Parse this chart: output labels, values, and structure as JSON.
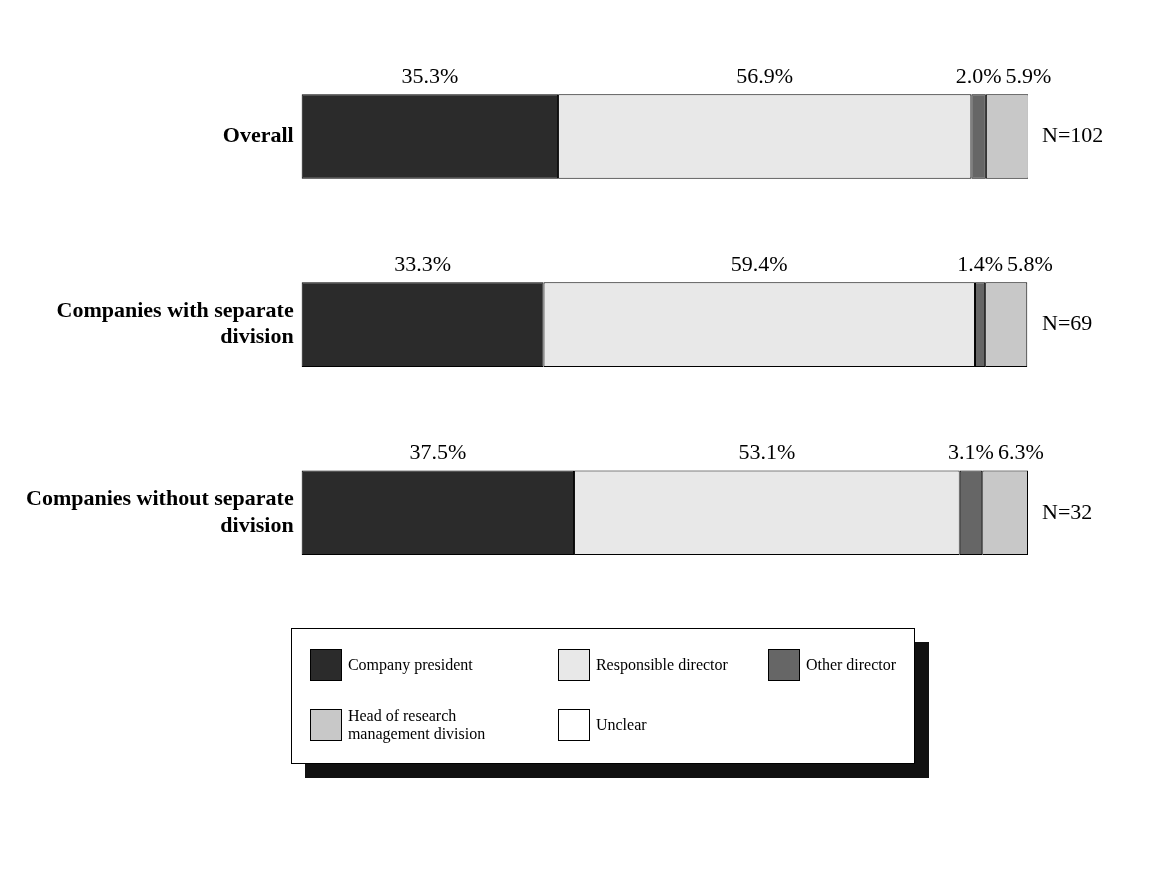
{
  "chart_data": {
    "type": "bar",
    "orientation": "horizontal",
    "stacked": true,
    "categories": [
      "Overall",
      "Companies with separate division",
      "Companies without separate division"
    ],
    "series": [
      {
        "name": "Company president",
        "color": "#2b2b2b",
        "values": [
          35.3,
          33.3,
          37.5
        ],
        "value_labels": [
          "35.3%",
          "33.3%",
          "37.5%"
        ]
      },
      {
        "name": "Responsible director",
        "color": "#e8e8e8",
        "values": [
          56.9,
          59.4,
          53.1
        ],
        "value_labels": [
          "56.9%",
          "59.4%",
          "53.1%"
        ]
      },
      {
        "name": "Other director",
        "color": "#666666",
        "values": [
          2.0,
          1.4,
          3.1
        ],
        "value_labels": [
          "2.0%",
          "1.4%",
          "3.1%"
        ]
      },
      {
        "name": "Head of research management division",
        "color": "#c8c8c8",
        "values": [
          5.9,
          5.8,
          6.3
        ],
        "value_labels": [
          "5.9%",
          "5.8%",
          "6.3%"
        ]
      },
      {
        "name": "Unclear",
        "color": "#ffffff",
        "values": [
          0,
          0,
          0
        ],
        "value_labels": [
          null,
          null,
          null
        ]
      }
    ],
    "xlim": [
      0,
      100
    ],
    "tick_labels": "y",
    "legend": "bottom",
    "annotations": [
      "N=102",
      "N=69",
      "N=32"
    ]
  }
}
